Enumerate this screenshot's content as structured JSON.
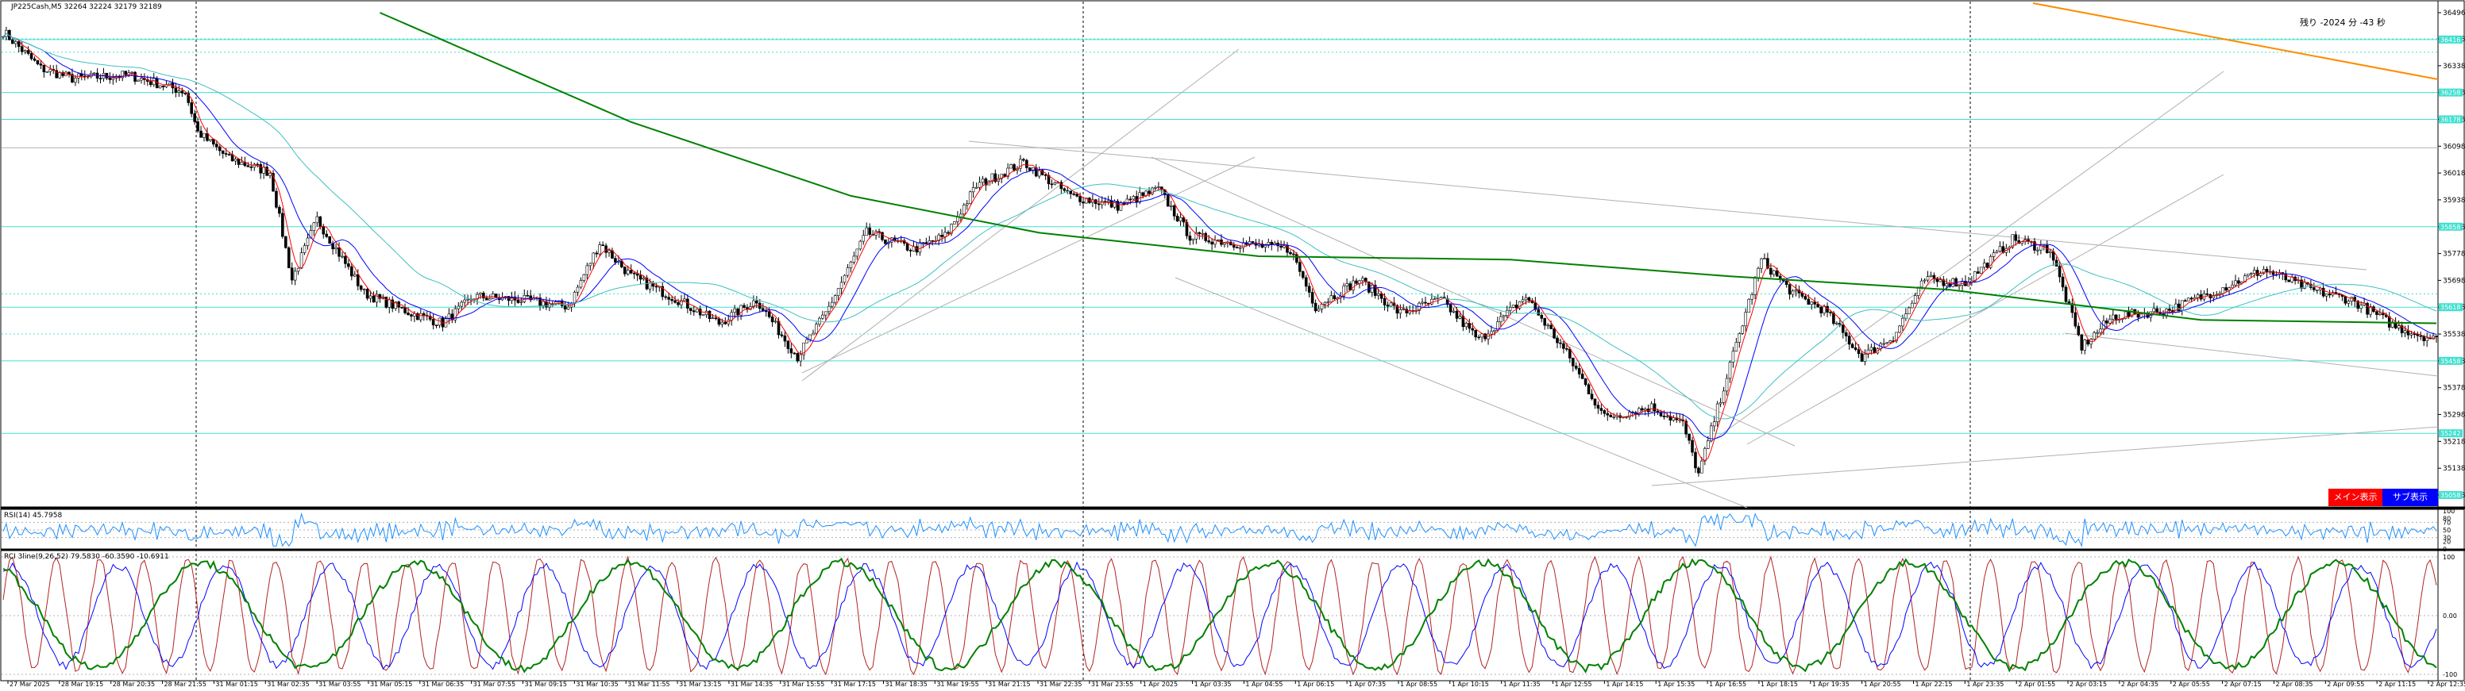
{
  "main_panel": {
    "header": "JP225Cash,M5  32264 32224 32179 32189",
    "countdown": "残り -2024 分 -43 秒",
    "price_axis_labels": [
      "36496",
      "36418",
      "36338",
      "36258",
      "36178",
      "36098",
      "36018",
      "35938",
      "35858",
      "35778",
      "35698",
      "35618",
      "35538",
      "35458",
      "35378",
      "35298",
      "35218",
      "35138",
      "35058"
    ],
    "level_tags": [
      "36416",
      "36258",
      "36178",
      "35858",
      "35618",
      "35458",
      "35242",
      "35058"
    ],
    "buttons": {
      "main": "メイン表示",
      "sub": "サブ表示"
    }
  },
  "rsi_panel": {
    "header": "RSI(14) 45.7958",
    "axis_labels": [
      "100",
      "80",
      "70",
      "50",
      "30",
      "20",
      "0"
    ]
  },
  "rci_panel": {
    "header": "RCI 3line(9,26,52) 79.5830 -60.3590 -10.6911",
    "axis_labels": [
      "100",
      "0.00",
      "-100"
    ]
  },
  "time_axis": [
    "27 Mar 2025",
    "28 Mar 19:15",
    "28 Mar 20:35",
    "28 Mar 21:55",
    "31 Mar 01:15",
    "31 Mar 02:35",
    "31 Mar 03:55",
    "31 Mar 05:15",
    "31 Mar 06:35",
    "31 Mar 07:55",
    "31 Mar 09:15",
    "31 Mar 10:35",
    "31 Mar 11:55",
    "31 Mar 13:15",
    "31 Mar 14:35",
    "31 Mar 15:55",
    "31 Mar 17:15",
    "31 Mar 18:35",
    "31 Mar 19:55",
    "31 Mar 21:15",
    "31 Mar 22:35",
    "31 Mar 23:55",
    "1 Apr 2025",
    "1 Apr 03:35",
    "1 Apr 04:55",
    "1 Apr 06:15",
    "1 Apr 07:35",
    "1 Apr 08:55",
    "1 Apr 10:15",
    "1 Apr 11:35",
    "1 Apr 12:55",
    "1 Apr 14:15",
    "1 Apr 15:35",
    "1 Apr 16:55",
    "1 Apr 18:15",
    "1 Apr 19:35",
    "1 Apr 20:55",
    "1 Apr 22:15",
    "1 Apr 23:35",
    "2 Apr 01:55",
    "2 Apr 03:15",
    "2 Apr 04:35",
    "2 Apr 05:55",
    "2 Apr 07:15",
    "2 Apr 08:35",
    "2 Apr 09:55",
    "2 Apr 11:15",
    "2 Apr 12:35"
  ],
  "chart_data": [
    {
      "type": "candlestick",
      "title": "JP225Cash,M5",
      "ylim": [
        35058,
        36496
      ],
      "trend_colors": {
        "long_ma": "#008000",
        "ema_short": "#0000ff",
        "ema_fast": "#ff0000",
        "mid_ma": "#40c0c0",
        "trendline": "#ff8c00",
        "level_lines": "#40e0d0"
      },
      "close_keypoints": [
        {
          "x": 0,
          "y": 36440
        },
        {
          "x": 12,
          "y": 36330
        },
        {
          "x": 22,
          "y": 36300
        },
        {
          "x": 40,
          "y": 36310
        },
        {
          "x": 58,
          "y": 36260
        },
        {
          "x": 62,
          "y": 36140
        },
        {
          "x": 72,
          "y": 36060
        },
        {
          "x": 85,
          "y": 36020
        },
        {
          "x": 92,
          "y": 35700
        },
        {
          "x": 100,
          "y": 35880
        },
        {
          "x": 115,
          "y": 35660
        },
        {
          "x": 130,
          "y": 35600
        },
        {
          "x": 140,
          "y": 35570
        },
        {
          "x": 150,
          "y": 35650
        },
        {
          "x": 165,
          "y": 35640
        },
        {
          "x": 180,
          "y": 35620
        },
        {
          "x": 190,
          "y": 35810
        },
        {
          "x": 200,
          "y": 35710
        },
        {
          "x": 215,
          "y": 35640
        },
        {
          "x": 228,
          "y": 35570
        },
        {
          "x": 240,
          "y": 35640
        },
        {
          "x": 253,
          "y": 35470
        },
        {
          "x": 262,
          "y": 35600
        },
        {
          "x": 275,
          "y": 35840
        },
        {
          "x": 290,
          "y": 35790
        },
        {
          "x": 300,
          "y": 35830
        },
        {
          "x": 310,
          "y": 35980
        },
        {
          "x": 325,
          "y": 36050
        },
        {
          "x": 340,
          "y": 35950
        },
        {
          "x": 355,
          "y": 35920
        },
        {
          "x": 368,
          "y": 35970
        },
        {
          "x": 378,
          "y": 35830
        },
        {
          "x": 392,
          "y": 35810
        },
        {
          "x": 410,
          "y": 35790
        },
        {
          "x": 418,
          "y": 35620
        },
        {
          "x": 432,
          "y": 35700
        },
        {
          "x": 445,
          "y": 35600
        },
        {
          "x": 458,
          "y": 35640
        },
        {
          "x": 470,
          "y": 35520
        },
        {
          "x": 485,
          "y": 35650
        },
        {
          "x": 498,
          "y": 35480
        },
        {
          "x": 510,
          "y": 35290
        },
        {
          "x": 525,
          "y": 35320
        },
        {
          "x": 535,
          "y": 35270
        },
        {
          "x": 540,
          "y": 35120
        },
        {
          "x": 548,
          "y": 35380
        },
        {
          "x": 560,
          "y": 35760
        },
        {
          "x": 570,
          "y": 35660
        },
        {
          "x": 580,
          "y": 35610
        },
        {
          "x": 592,
          "y": 35470
        },
        {
          "x": 602,
          "y": 35530
        },
        {
          "x": 612,
          "y": 35700
        },
        {
          "x": 625,
          "y": 35690
        },
        {
          "x": 640,
          "y": 35820
        },
        {
          "x": 652,
          "y": 35790
        },
        {
          "x": 662,
          "y": 35500
        },
        {
          "x": 672,
          "y": 35590
        },
        {
          "x": 690,
          "y": 35610
        },
        {
          "x": 708,
          "y": 35680
        },
        {
          "x": 720,
          "y": 35730
        },
        {
          "x": 735,
          "y": 35670
        },
        {
          "x": 748,
          "y": 35640
        },
        {
          "x": 762,
          "y": 35560
        },
        {
          "x": 775,
          "y": 35520
        }
      ],
      "ma_long": [
        {
          "x": 120,
          "y": 36496
        },
        {
          "x": 200,
          "y": 36170
        },
        {
          "x": 270,
          "y": 35950
        },
        {
          "x": 330,
          "y": 35840
        },
        {
          "x": 400,
          "y": 35770
        },
        {
          "x": 480,
          "y": 35760
        },
        {
          "x": 550,
          "y": 35710
        },
        {
          "x": 620,
          "y": 35670
        },
        {
          "x": 700,
          "y": 35580
        },
        {
          "x": 775,
          "y": 35570
        }
      ],
      "rsi_last": 45.7958,
      "rci_last": [
        79.583,
        -60.359,
        -10.6911
      ]
    }
  ]
}
